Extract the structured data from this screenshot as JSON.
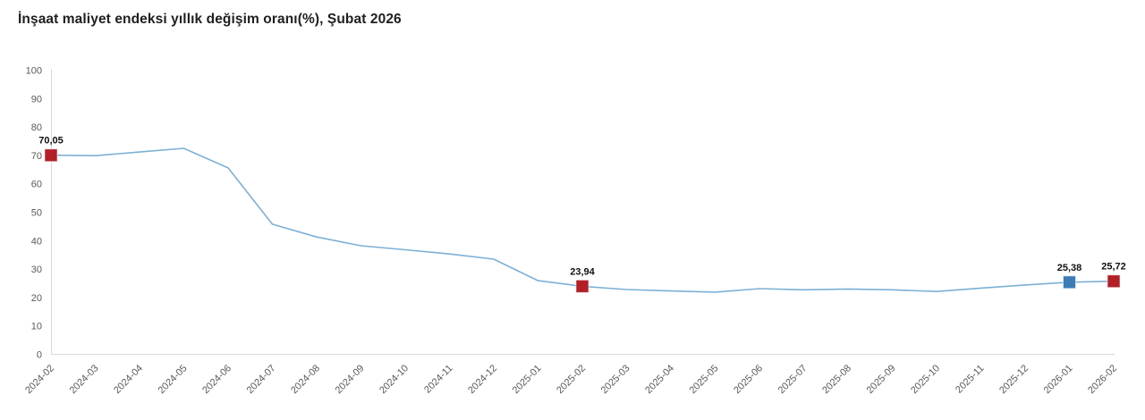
{
  "title": "İnşaat maliyet endeksi yıllık değişim oranı(%), Şubat 2026",
  "colors": {
    "line": "#7cb0d5",
    "marker_red": "#b21f27",
    "marker_blue": "#3d7cb5",
    "axis": "#d9d9d9",
    "tick_text": "#5a5a5a",
    "title_text": "#1f1f1f",
    "label_text": "#111111"
  },
  "chart_data": {
    "type": "line",
    "title": "İnşaat maliyet endeksi yıllık değişim oranı(%), Şubat 2026",
    "categories": [
      "2024-02",
      "2024-03",
      "2024-04",
      "2024-05",
      "2024-06",
      "2024-07",
      "2024-08",
      "2024-09",
      "2024-10",
      "2024-11",
      "2024-12",
      "2025-01",
      "2025-02",
      "2025-03",
      "2025-04",
      "2025-05",
      "2025-06",
      "2025-07",
      "2025-08",
      "2025-09",
      "2025-10",
      "2025-11",
      "2025-12",
      "2026-01",
      "2026-02"
    ],
    "values": [
      70.05,
      69.9,
      71.2,
      72.5,
      65.6,
      45.8,
      41.3,
      38.2,
      36.8,
      35.3,
      33.5,
      25.9,
      23.94,
      22.8,
      22.3,
      21.9,
      23.1,
      22.7,
      23.0,
      22.7,
      22.1,
      23.3,
      24.4,
      25.38,
      25.72
    ],
    "labeled_points": [
      {
        "category": "2024-02",
        "value_label": "70,05",
        "color": "#b21f27"
      },
      {
        "category": "2025-02",
        "value_label": "23,94",
        "color": "#b21f27"
      },
      {
        "category": "2026-01",
        "value_label": "25,38",
        "color": "#3d7cb5"
      },
      {
        "category": "2026-02",
        "value_label": "25,72",
        "color": "#b21f27"
      }
    ],
    "xlabel": "",
    "ylabel": "",
    "y_axis": {
      "min": 0,
      "max": 100,
      "tick_interval": 10
    },
    "x_tick_rotation": -45,
    "grid": false,
    "legend": false
  }
}
